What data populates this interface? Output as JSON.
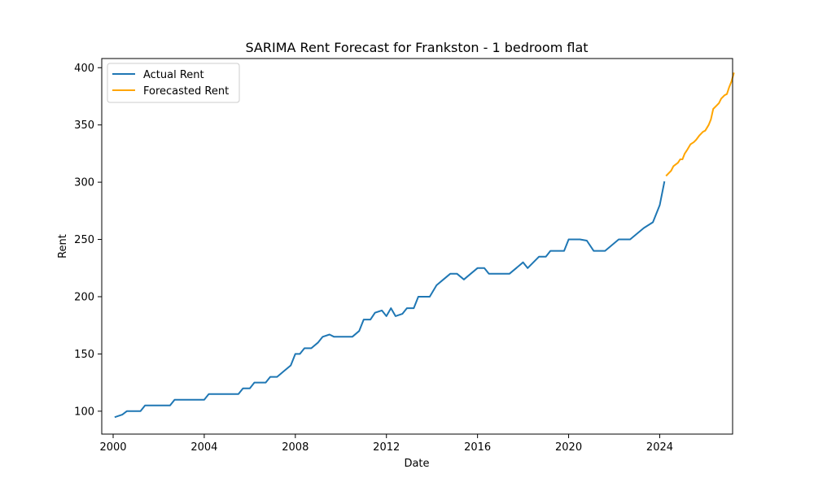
{
  "chart_data": {
    "type": "line",
    "title": "SARIMA Rent Forecast for Frankston - 1 bedroom flat",
    "xlabel": "Date",
    "ylabel": "Rent",
    "xlim": [
      1999.5,
      2027.2
    ],
    "ylim": [
      80,
      408
    ],
    "x_ticks": [
      2000,
      2004,
      2008,
      2012,
      2016,
      2020,
      2024
    ],
    "y_ticks": [
      100,
      150,
      200,
      250,
      300,
      350,
      400
    ],
    "grid": false,
    "legend_position": "top-left",
    "series": [
      {
        "name": "Actual Rent",
        "color": "#1f77b4",
        "points": [
          [
            2000.1,
            95
          ],
          [
            2000.4,
            97
          ],
          [
            2000.6,
            100
          ],
          [
            2001.0,
            100
          ],
          [
            2001.2,
            100
          ],
          [
            2001.4,
            105
          ],
          [
            2002.0,
            105
          ],
          [
            2002.5,
            105
          ],
          [
            2002.7,
            110
          ],
          [
            2003.0,
            110
          ],
          [
            2004.0,
            110
          ],
          [
            2004.2,
            115
          ],
          [
            2005.0,
            115
          ],
          [
            2005.5,
            115
          ],
          [
            2005.7,
            120
          ],
          [
            2006.0,
            120
          ],
          [
            2006.2,
            125
          ],
          [
            2006.7,
            125
          ],
          [
            2006.9,
            130
          ],
          [
            2007.2,
            130
          ],
          [
            2007.5,
            135
          ],
          [
            2007.8,
            140
          ],
          [
            2008.0,
            150
          ],
          [
            2008.2,
            150
          ],
          [
            2008.4,
            155
          ],
          [
            2008.7,
            155
          ],
          [
            2009.0,
            160
          ],
          [
            2009.2,
            165
          ],
          [
            2009.5,
            167
          ],
          [
            2009.7,
            165
          ],
          [
            2010.0,
            165
          ],
          [
            2010.5,
            165
          ],
          [
            2010.8,
            170
          ],
          [
            2011.0,
            180
          ],
          [
            2011.3,
            180
          ],
          [
            2011.5,
            186
          ],
          [
            2011.8,
            188
          ],
          [
            2012.0,
            183
          ],
          [
            2012.2,
            190
          ],
          [
            2012.4,
            183
          ],
          [
            2012.7,
            185
          ],
          [
            2012.9,
            190
          ],
          [
            2013.2,
            190
          ],
          [
            2013.4,
            200
          ],
          [
            2013.9,
            200
          ],
          [
            2014.2,
            210
          ],
          [
            2014.5,
            215
          ],
          [
            2014.8,
            220
          ],
          [
            2015.1,
            220
          ],
          [
            2015.4,
            215
          ],
          [
            2015.7,
            220
          ],
          [
            2016.0,
            225
          ],
          [
            2016.3,
            225
          ],
          [
            2016.5,
            220
          ],
          [
            2017.0,
            220
          ],
          [
            2017.4,
            220
          ],
          [
            2017.7,
            225
          ],
          [
            2018.0,
            230
          ],
          [
            2018.2,
            225
          ],
          [
            2018.7,
            235
          ],
          [
            2019.0,
            235
          ],
          [
            2019.2,
            240
          ],
          [
            2019.8,
            240
          ],
          [
            2020.0,
            250
          ],
          [
            2020.5,
            250
          ],
          [
            2020.8,
            249
          ],
          [
            2021.1,
            240
          ],
          [
            2021.6,
            240
          ],
          [
            2022.2,
            250
          ],
          [
            2022.7,
            250
          ],
          [
            2023.3,
            260
          ],
          [
            2023.7,
            265
          ],
          [
            2024.0,
            280
          ],
          [
            2024.2,
            300
          ]
        ]
      },
      {
        "name": "Forecasted Rent",
        "color": "#ffa500",
        "points": [
          [
            2024.3,
            306
          ],
          [
            2024.5,
            310
          ],
          [
            2024.6,
            314
          ],
          [
            2024.8,
            317
          ],
          [
            2024.9,
            320
          ],
          [
            2025.0,
            320
          ],
          [
            2025.1,
            325
          ],
          [
            2025.2,
            328
          ],
          [
            2025.35,
            333
          ],
          [
            2025.5,
            335
          ],
          [
            2025.6,
            337
          ],
          [
            2025.75,
            341
          ],
          [
            2025.9,
            344
          ],
          [
            2026.0,
            345
          ],
          [
            2026.15,
            350
          ],
          [
            2026.25,
            355
          ],
          [
            2026.35,
            364
          ],
          [
            2026.5,
            367
          ],
          [
            2026.6,
            369
          ],
          [
            2026.7,
            373
          ],
          [
            2026.85,
            376
          ],
          [
            2026.95,
            377
          ],
          [
            2027.05,
            383
          ],
          [
            2027.15,
            388
          ],
          [
            2027.25,
            395
          ]
        ]
      }
    ]
  }
}
